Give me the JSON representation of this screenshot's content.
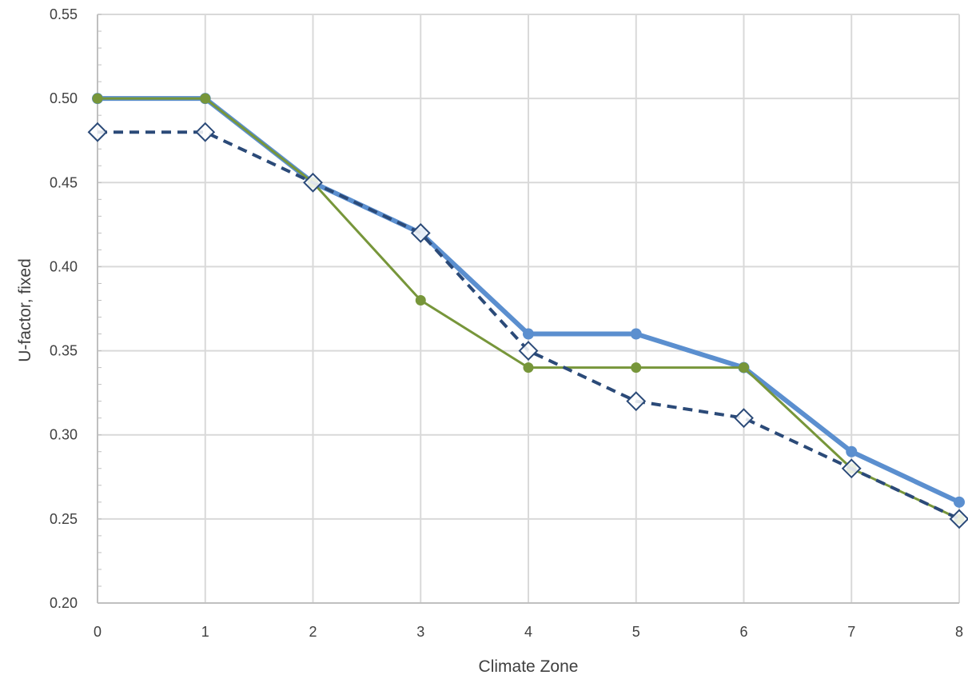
{
  "chart_data": {
    "type": "line",
    "xlabel": "Climate Zone",
    "ylabel": "U-factor, fixed",
    "x": [
      0,
      1,
      2,
      3,
      4,
      5,
      6,
      7,
      8
    ],
    "xlim": [
      0,
      8
    ],
    "ylim": [
      0.2,
      0.55
    ],
    "yticks": [
      "0.20",
      "0.25",
      "0.30",
      "0.35",
      "0.40",
      "0.45",
      "0.50",
      "0.55"
    ],
    "xticks": [
      "0",
      "1",
      "2",
      "3",
      "4",
      "5",
      "6",
      "7",
      "8"
    ],
    "grid": true,
    "series": [
      {
        "values": [
          0.5,
          0.5,
          0.45,
          0.42,
          0.36,
          0.36,
          0.34,
          0.29,
          0.26
        ],
        "color": "#5b8fcf",
        "style": "solid-thick",
        "marker": "circle"
      },
      {
        "values": [
          0.5,
          0.5,
          0.45,
          0.38,
          0.34,
          0.34,
          0.34,
          0.28,
          0.25
        ],
        "color": "#77963a",
        "style": "solid",
        "marker": "circle"
      },
      {
        "values": [
          0.48,
          0.48,
          0.45,
          0.42,
          0.35,
          0.32,
          0.31,
          0.28,
          0.25
        ],
        "color": "#2b4a78",
        "style": "dashed",
        "marker": "diamond-open"
      }
    ]
  }
}
